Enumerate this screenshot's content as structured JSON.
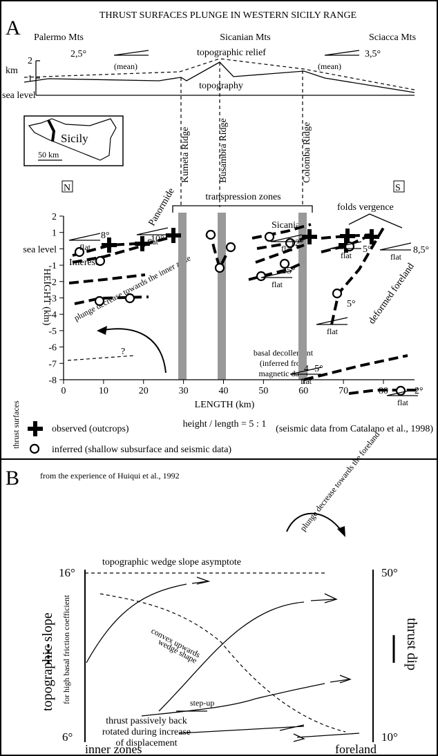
{
  "panel_a": {
    "label": "A",
    "title": "THRUST SURFACES PLUNGE IN WESTERN SICILY RANGE",
    "mountains": [
      "Palermo Mts",
      "Sicanian Mts",
      "Sciacca Mts"
    ],
    "relief": {
      "left_angle": "2,5°",
      "left_note": "(mean)",
      "right_angle": "3,5°",
      "right_note": "(mean)",
      "relief_label": "topographic relief",
      "topography_label": "topography",
      "unit": "km",
      "ticks": [
        "2",
        "1"
      ],
      "sea_level": "sea level"
    },
    "inset": {
      "name": "Sicily",
      "scale": "50 km"
    },
    "ridges": [
      "Kumeta Ridge",
      "Busambra Ridge",
      "Colomba Ridge"
    ],
    "north": "N",
    "south": "S",
    "labels": {
      "panormide": "Panormide",
      "transpression": "transpression zones",
      "folds": "folds vergence",
      "sicanian": "Sicanian",
      "imerese": "Imerese",
      "plunge": "plunge decrease towards the inner zone",
      "question": "?",
      "decollement": [
        "basal decollement",
        "(inferred from",
        "magnetic data)"
      ],
      "foreland": "deformed foreland"
    },
    "angles": [
      "8°",
      "10°",
      "12°",
      "15°",
      "5°",
      "8,5°",
      "5°",
      "4 -5°",
      "2°"
    ],
    "flat": "flat",
    "y_axis": {
      "title": "HEIGHT (km)",
      "ticks": [
        2,
        1,
        "sea level",
        -1,
        -2,
        -3,
        -4,
        -5,
        -6,
        -7,
        -8
      ]
    },
    "x_axis": {
      "title": "LENGTH (km)",
      "ticks": [
        0,
        10,
        20,
        30,
        40,
        50,
        60,
        70,
        80
      ]
    },
    "ratio": "height / length = 5 : 1",
    "legend": {
      "title": "thrust surfaces",
      "observed": "observed (outcrops)",
      "inferred": "inferred (shallow subsurface and seismic data)",
      "source": "(seismic data from Catalano et al., 1998)"
    }
  },
  "panel_b": {
    "label": "B",
    "source": "from the experience of Huiqui et al., 1992",
    "plunge": "plunge decrease towards the foreland",
    "asymptote": "topographic wedge slope asymptote",
    "left_top": "16°",
    "left_bottom": "6°",
    "right_top": "50°",
    "right_bottom": "10°",
    "left_title": "topographic slope",
    "left_subtitle": "for high basal friction coefficient",
    "right_title": "thrust dip",
    "convex": [
      "convex upwards",
      "wedge shape"
    ],
    "stepup": "step-up",
    "rotated": [
      "thrust passively back",
      "rotated during increase",
      "of displacement"
    ],
    "inner": "inner zones",
    "foreland": "foreland"
  }
}
